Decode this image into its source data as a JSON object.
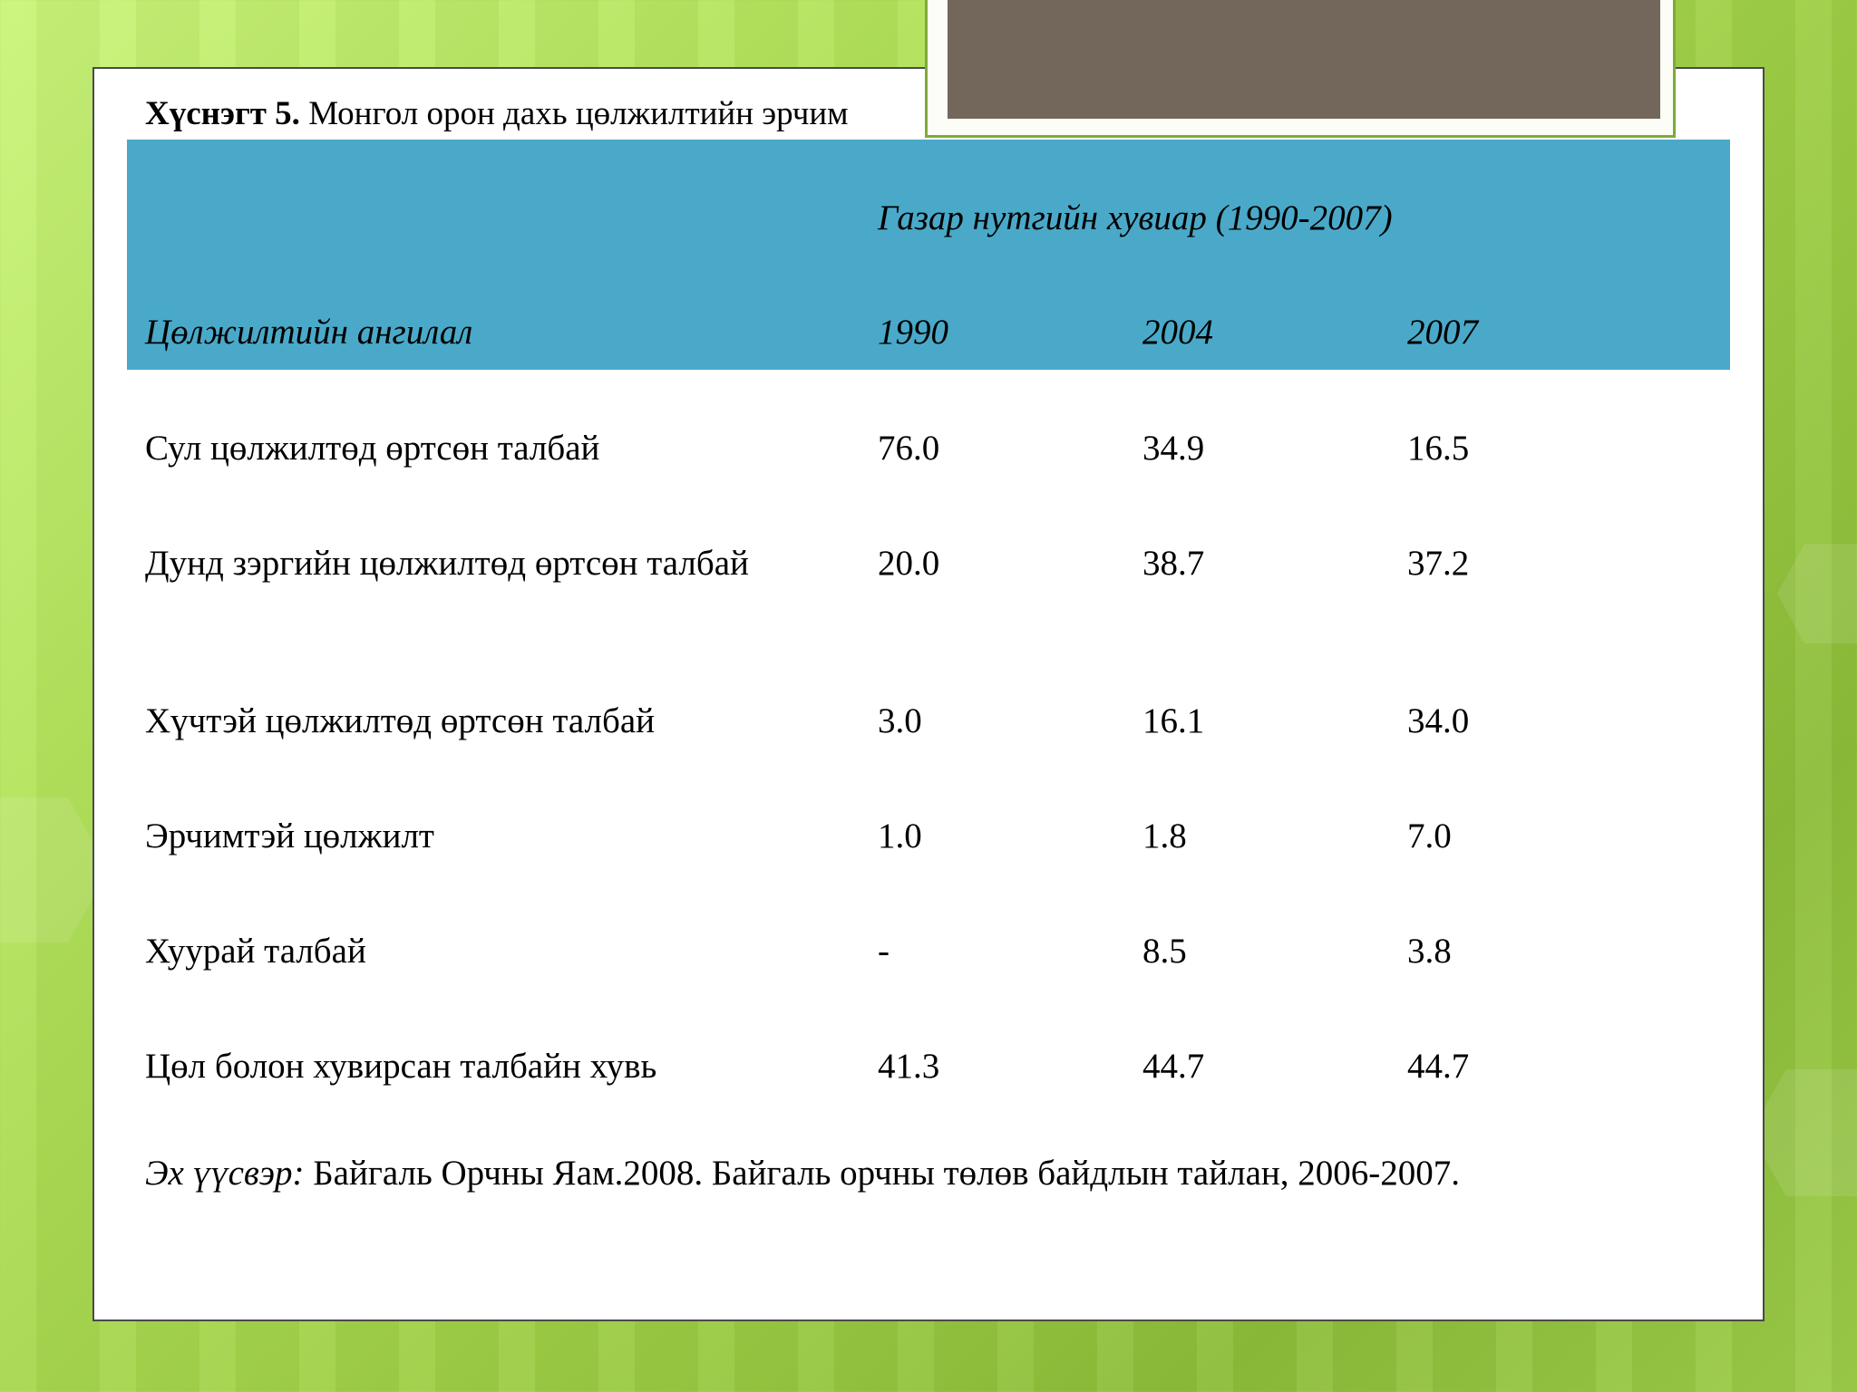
{
  "title": {
    "label": "Хүснэгт 5.",
    "text": "Монгол орон дахь цөлжилтийн эрчим"
  },
  "header": {
    "group_label": "Газар нутгийн хувиар (1990-2007)",
    "category_label": "Цөлжилтийн ангилал",
    "years": [
      "1990",
      "2004",
      "2007"
    ]
  },
  "rows": [
    {
      "name": "Сул цөлжилтөд өртсөн талбай",
      "values": [
        "76.0",
        "34.9",
        "16.5"
      ]
    },
    {
      "name": "Дунд зэргийн цөлжилтөд өртсөн талбай",
      "values": [
        "20.0",
        "38.7",
        "37.2"
      ]
    },
    {
      "name": "Хүчтэй цөлжилтөд өртсөн талбай",
      "values": [
        "3.0",
        "16.1",
        "34.0"
      ]
    },
    {
      "name": "Эрчимтэй цөлжилт",
      "values": [
        "1.0",
        "1.8",
        "7.0"
      ]
    },
    {
      "name": "Хуурай талбай",
      "values": [
        "-",
        "8.5",
        "3.8"
      ]
    },
    {
      "name": "Цөл болон хувирсан талбайн хувь",
      "values": [
        "41.3",
        "44.7",
        "44.7"
      ]
    }
  ],
  "source": {
    "label": "Эх үүсвэр:",
    "text": " Байгаль Орчны Яам.2008. Байгаль орчны төлөв байдлын тайлан, 2006-2007."
  },
  "colors": {
    "header_band": "#4aa9c9",
    "photo": "#73675b",
    "frame_border": "#7eaa3a"
  }
}
